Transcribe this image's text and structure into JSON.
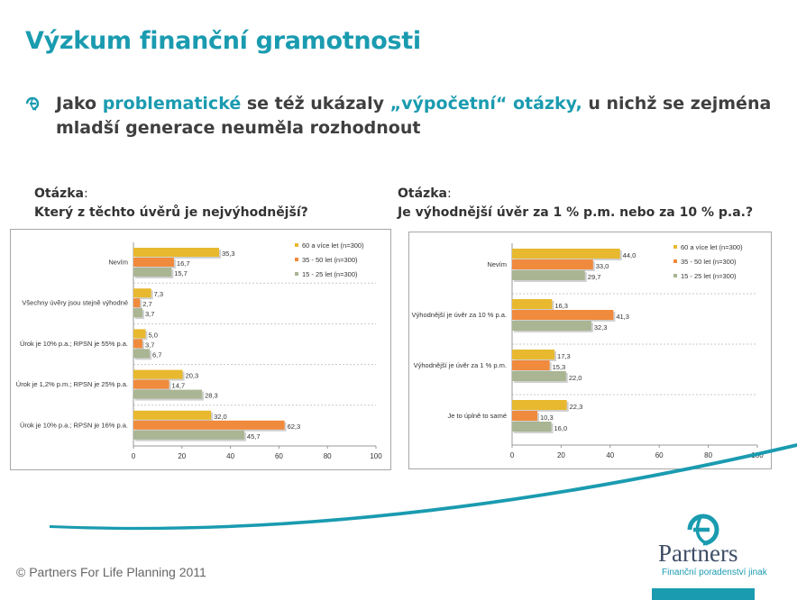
{
  "page": {
    "title": "Výzkum finanční gramotnosti",
    "bullet_parts": [
      "Jako ",
      "problematické",
      " se též ukázaly ",
      "„výpočetní“ otázky,",
      " u nichž se zejména mladší generace neuměla rozhodnout"
    ],
    "footer": "© Partners For Life Planning 2011",
    "logo_word": "Partners",
    "logo_tagline": "Finanční poradenství jinak",
    "accent_color": "#1a9bb0"
  },
  "questions": [
    {
      "label": "Otázka",
      "colon": ":",
      "text": "Který z těchto úvěrů je nejvýhodnější?"
    },
    {
      "label": "Otázka",
      "colon": ":",
      "text": "Je výhodnější úvěr za 1 % p.m. nebo za 10 % p.a.?"
    }
  ],
  "chart_data": [
    {
      "type": "bar",
      "orientation": "horizontal",
      "categories": [
        "Nevím",
        "Všechny úvěry jsou stejně výhodné",
        "Úrok je 10% p.a.; RPSN je 55% p.a.",
        "Úrok je 1,2% p.m.; RPSN je 25% p.a.",
        "Úrok je 10% p.a.; RPSN je 16% p.a."
      ],
      "series": [
        {
          "name": "60 a více let (n=300)",
          "color": "#e8b92f",
          "values": [
            35.3,
            7.3,
            5.0,
            20.3,
            32.0
          ],
          "labels": [
            "35,3",
            "7,3",
            "5,0",
            "20,3",
            "32,0"
          ]
        },
        {
          "name": "35 - 50 let (n=300)",
          "color": "#f08a3c",
          "values": [
            16.7,
            2.7,
            3.7,
            14.7,
            62.3
          ],
          "labels": [
            "16,7",
            "2,7",
            "3,7",
            "14,7",
            "62,3"
          ]
        },
        {
          "name": "15 - 25 let (n=300)",
          "color": "#a9b593",
          "values": [
            15.7,
            3.7,
            6.7,
            28.3,
            45.7
          ],
          "labels": [
            "15,7",
            "3,7",
            "6,7",
            "28,3",
            "45,7"
          ]
        }
      ],
      "xlim": [
        0,
        100
      ],
      "ticks": [
        0,
        20,
        40,
        60,
        80,
        100
      ],
      "grid": true,
      "legend": "top-right"
    },
    {
      "type": "bar",
      "orientation": "horizontal",
      "categories": [
        "Nevím",
        "Výhodnější je úvěr za 10 % p.a.",
        "Výhodnější je úvěr za 1 % p.m.",
        "Je to úplně to samé"
      ],
      "series": [
        {
          "name": "60 a více let (n=300)",
          "color": "#e8b92f",
          "values": [
            44.0,
            16.3,
            17.3,
            22.3
          ],
          "labels": [
            "44,0",
            "16,3",
            "17,3",
            "22,3"
          ]
        },
        {
          "name": "35 - 50 let (n=300)",
          "color": "#f08a3c",
          "values": [
            33.0,
            41.3,
            15.3,
            10.3
          ],
          "labels": [
            "33,0",
            "41,3",
            "15,3",
            "10,3"
          ]
        },
        {
          "name": "15 - 25 let (n=300)",
          "color": "#a9b593",
          "values": [
            29.7,
            32.3,
            22.0,
            16.0
          ],
          "labels": [
            "29,7",
            "32,3",
            "22,0",
            "16,0"
          ]
        }
      ],
      "xlim": [
        0,
        100
      ],
      "ticks": [
        0,
        20,
        40,
        60,
        80,
        100
      ],
      "grid": true,
      "legend": "top-right"
    }
  ]
}
